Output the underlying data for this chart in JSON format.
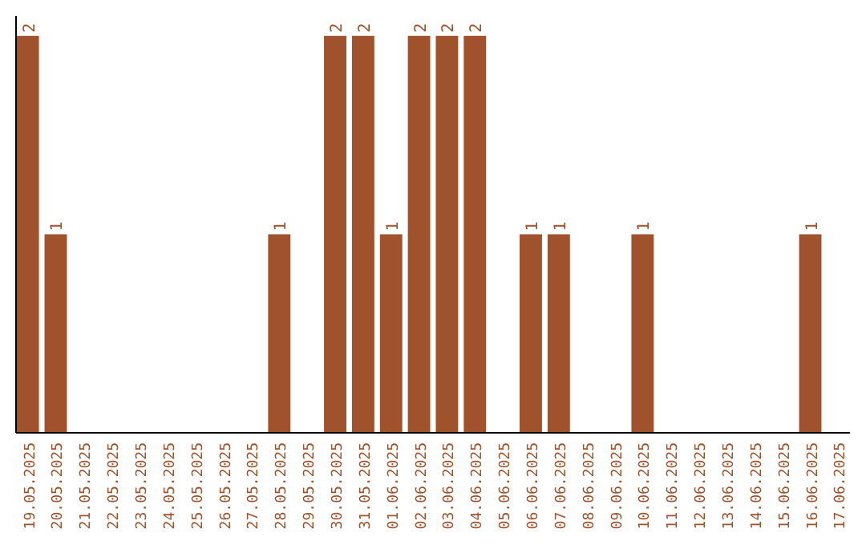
{
  "chart_data": {
    "type": "bar",
    "categories": [
      "19.05.2025",
      "20.05.2025",
      "21.05.2025",
      "22.05.2025",
      "23.05.2025",
      "24.05.2025",
      "25.05.2025",
      "26.05.2025",
      "27.05.2025",
      "28.05.2025",
      "29.05.2025",
      "30.05.2025",
      "31.05.2025",
      "01.06.2025",
      "02.06.2025",
      "03.06.2025",
      "04.06.2025",
      "05.06.2025",
      "06.06.2025",
      "07.06.2025",
      "08.06.2025",
      "09.06.2025",
      "10.06.2025",
      "11.06.2025",
      "12.06.2025",
      "13.06.2025",
      "14.06.2025",
      "15.06.2025",
      "16.06.2025",
      "17.06.2025"
    ],
    "values": [
      2,
      1,
      0,
      0,
      0,
      0,
      0,
      0,
      0,
      1,
      0,
      2,
      2,
      1,
      2,
      2,
      2,
      0,
      1,
      1,
      0,
      0,
      1,
      0,
      0,
      0,
      0,
      0,
      1,
      0
    ],
    "value_labels": [
      "2",
      "1",
      null,
      null,
      null,
      null,
      null,
      null,
      null,
      "1",
      null,
      "2",
      "2",
      "1",
      "2",
      "2",
      "2",
      null,
      "1",
      "1",
      null,
      null,
      "1",
      null,
      null,
      null,
      null,
      null,
      "1",
      null
    ],
    "color": "#a0522d"
  }
}
